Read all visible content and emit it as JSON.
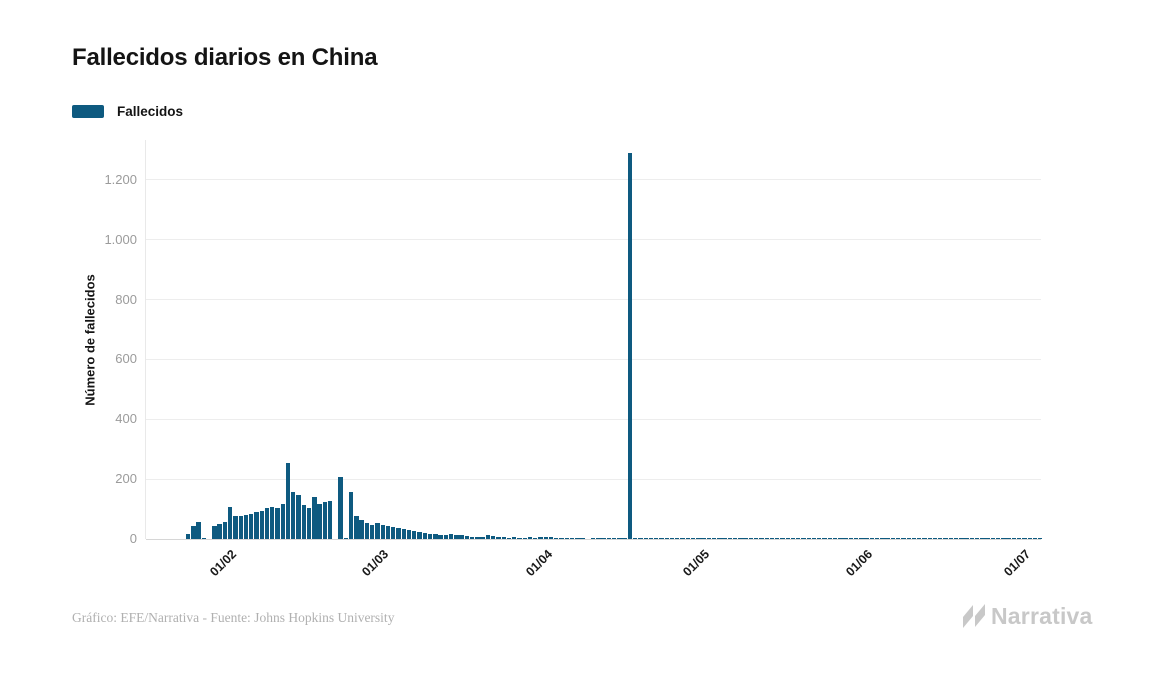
{
  "page": {
    "background": "#ffffff"
  },
  "header": {
    "title": "Fallecidos diarios en China"
  },
  "legend": {
    "items": [
      {
        "label": "Fallecidos",
        "color": "#0e5a80"
      }
    ]
  },
  "chart_data": {
    "type": "bar",
    "title": "Fallecidos diarios en China",
    "series_name": "Fallecidos",
    "xlabel": "",
    "ylabel": "Número de fallecidos",
    "ylim": [
      0,
      1333
    ],
    "grid": "horizontal",
    "legend_position": "top-left",
    "bar_color": "#0e5a80",
    "y_ticks": [
      {
        "value": 0,
        "label": "0"
      },
      {
        "value": 200,
        "label": "200"
      },
      {
        "value": 400,
        "label": "400"
      },
      {
        "value": 600,
        "label": "600"
      },
      {
        "value": 800,
        "label": "800"
      },
      {
        "value": 1000,
        "label": "1.000"
      },
      {
        "value": 1200,
        "label": "1.200"
      }
    ],
    "x_ticks": [
      {
        "label": "01/02",
        "day_index": 8
      },
      {
        "label": "01/03",
        "day_index": 37
      },
      {
        "label": "01/04",
        "day_index": 68
      },
      {
        "label": "01/05",
        "day_index": 98
      },
      {
        "label": "01/06",
        "day_index": 129
      },
      {
        "label": "01/07",
        "day_index": 159
      }
    ],
    "values_are_daily_deaths": true,
    "values": [
      18,
      45,
      57,
      3,
      0,
      44,
      50,
      57,
      108,
      76,
      78,
      80,
      84,
      91,
      94,
      102,
      108,
      105,
      117,
      254,
      156,
      148,
      114,
      102,
      141,
      117,
      122,
      128,
      0,
      208,
      2,
      156,
      78,
      65,
      55,
      48,
      52,
      46,
      42,
      40,
      36,
      33,
      30,
      28,
      22,
      19,
      18,
      17,
      15,
      14,
      16,
      14,
      13,
      11,
      8,
      6,
      8,
      15,
      10,
      7,
      6,
      5,
      6,
      5,
      5,
      6,
      5,
      8,
      7,
      6,
      5,
      5,
      4,
      3,
      2,
      3,
      0,
      2,
      3,
      2,
      2,
      3,
      2,
      2,
      1290,
      2,
      3,
      2,
      3,
      2,
      2,
      3,
      2,
      3,
      2,
      2,
      3,
      2,
      3,
      2,
      2,
      3,
      2,
      3,
      2,
      2,
      3,
      2,
      3,
      2,
      2,
      3,
      2,
      3,
      2,
      2,
      3,
      2,
      3,
      2,
      2,
      3,
      2,
      3,
      2,
      2,
      3,
      2,
      3,
      2,
      2,
      3,
      2,
      3,
      2,
      2,
      3,
      2,
      3,
      2,
      2,
      3,
      2,
      3,
      2,
      2,
      3,
      2,
      3,
      2,
      2,
      3,
      2,
      3,
      2,
      2,
      3,
      2,
      3,
      2,
      2,
      3,
      2
    ]
  },
  "footer": {
    "credit": "Gráfico: EFE/Narrativa - Fuente: Johns Hopkins University"
  },
  "branding": {
    "logo_text": "Narrativa",
    "logo_icon": "narrativa-n-icon",
    "logo_color": "#c8c8c8"
  },
  "colors": {
    "bar": "#0e5a80",
    "grid": "#ededed",
    "baseline": "#d6d6d6",
    "y_tick_label": "#9b9b9b",
    "x_tick_label": "#1a1a1a",
    "title": "#141414",
    "credit": "#b0b0b0",
    "brand": "#c8c8c8"
  }
}
